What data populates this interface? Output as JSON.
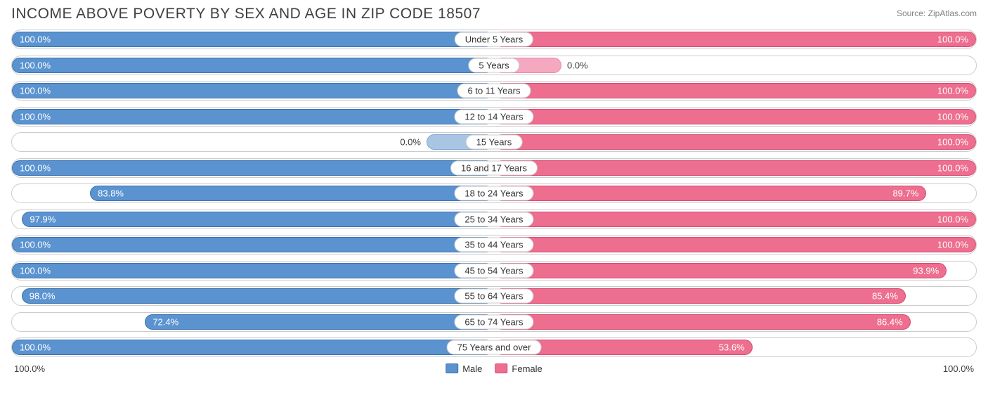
{
  "title": "INCOME ABOVE POVERTY BY SEX AND AGE IN ZIP CODE 18507",
  "source": "Source: ZipAtlas.com",
  "colors": {
    "male_fill": "#5a93d0",
    "male_stroke": "#3c71aa",
    "male_light_fill": "#a9c5e4",
    "male_light_stroke": "#7ba3ce",
    "female_fill": "#ed6e8f",
    "female_stroke": "#d64a72",
    "female_light_fill": "#f5a9c0",
    "female_light_stroke": "#e986a6",
    "track_border": "#cccccc",
    "text_dark": "#404040",
    "text_light": "#ffffff"
  },
  "axis": {
    "left": "100.0%",
    "right": "100.0%"
  },
  "legend": [
    {
      "label": "Male",
      "fill_key": "male_fill",
      "stroke_key": "male_stroke"
    },
    {
      "label": "Female",
      "fill_key": "female_fill",
      "stroke_key": "female_stroke"
    }
  ],
  "rows": [
    {
      "category": "Under 5 Years",
      "male": 100.0,
      "female": 100.0
    },
    {
      "category": "5 Years",
      "male": 100.0,
      "female": 0.0
    },
    {
      "category": "6 to 11 Years",
      "male": 100.0,
      "female": 100.0
    },
    {
      "category": "12 to 14 Years",
      "male": 100.0,
      "female": 100.0
    },
    {
      "category": "15 Years",
      "male": 0.0,
      "female": 100.0
    },
    {
      "category": "16 and 17 Years",
      "male": 100.0,
      "female": 100.0
    },
    {
      "category": "18 to 24 Years",
      "male": 83.8,
      "female": 89.7
    },
    {
      "category": "25 to 34 Years",
      "male": 97.9,
      "female": 100.0
    },
    {
      "category": "35 to 44 Years",
      "male": 100.0,
      "female": 100.0
    },
    {
      "category": "45 to 54 Years",
      "male": 100.0,
      "female": 93.9
    },
    {
      "category": "55 to 64 Years",
      "male": 98.0,
      "female": 85.4
    },
    {
      "category": "65 to 74 Years",
      "male": 72.4,
      "female": 86.4
    },
    {
      "category": "75 Years and over",
      "male": 100.0,
      "female": 53.6
    }
  ],
  "stub_pct": 14,
  "label_inside_threshold": 30
}
